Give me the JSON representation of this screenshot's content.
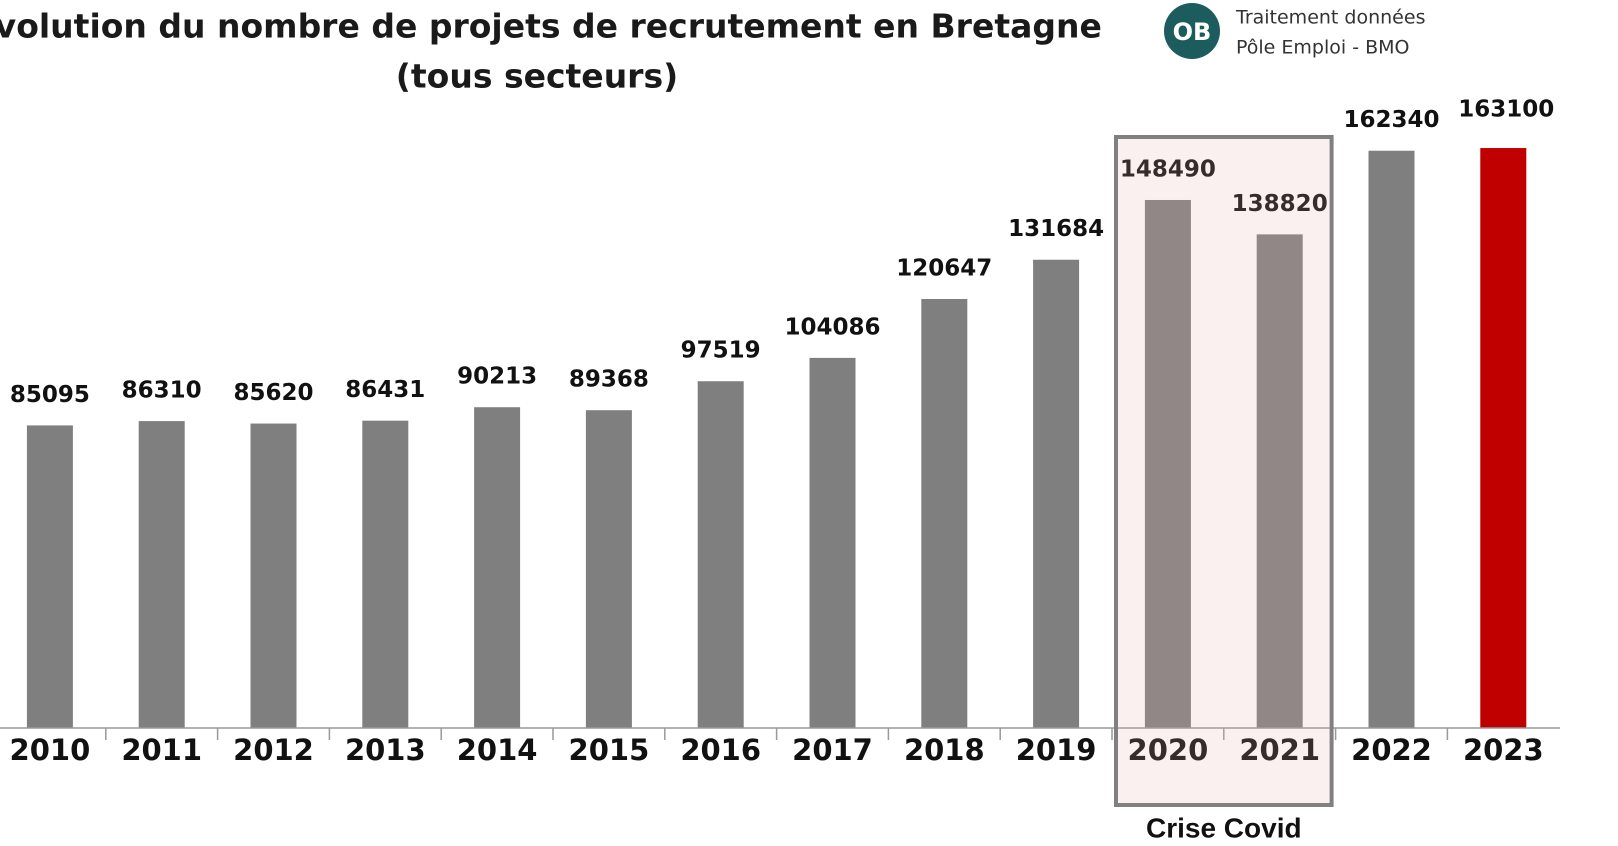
{
  "chart_data": {
    "type": "bar",
    "title": "Evolution du nombre de projets de recrutement en Bretagne",
    "subtitle": "(tous secteurs)",
    "logo": "OB",
    "source": [
      "Traitement données",
      "Pôle Emploi - BMO"
    ],
    "categories": [
      "2010",
      "2011",
      "2012",
      "2013",
      "2014",
      "2015",
      "2016",
      "2017",
      "2018",
      "2019",
      "2020",
      "2021",
      "2022",
      "2023"
    ],
    "values": [
      85095,
      86310,
      85620,
      86431,
      90213,
      89368,
      97519,
      104086,
      120647,
      131684,
      148490,
      138820,
      162340,
      163100
    ],
    "colors": [
      "#7f7f7f",
      "#7f7f7f",
      "#7f7f7f",
      "#7f7f7f",
      "#7f7f7f",
      "#7f7f7f",
      "#7f7f7f",
      "#7f7f7f",
      "#7f7f7f",
      "#7f7f7f",
      "#7f7f7f",
      "#7f7f7f",
      "#7f7f7f",
      "#c00000"
    ],
    "ylim": [
      0,
      170000
    ],
    "annotation": {
      "text": "Crise Covid",
      "span": [
        "2020",
        "2021"
      ]
    }
  }
}
